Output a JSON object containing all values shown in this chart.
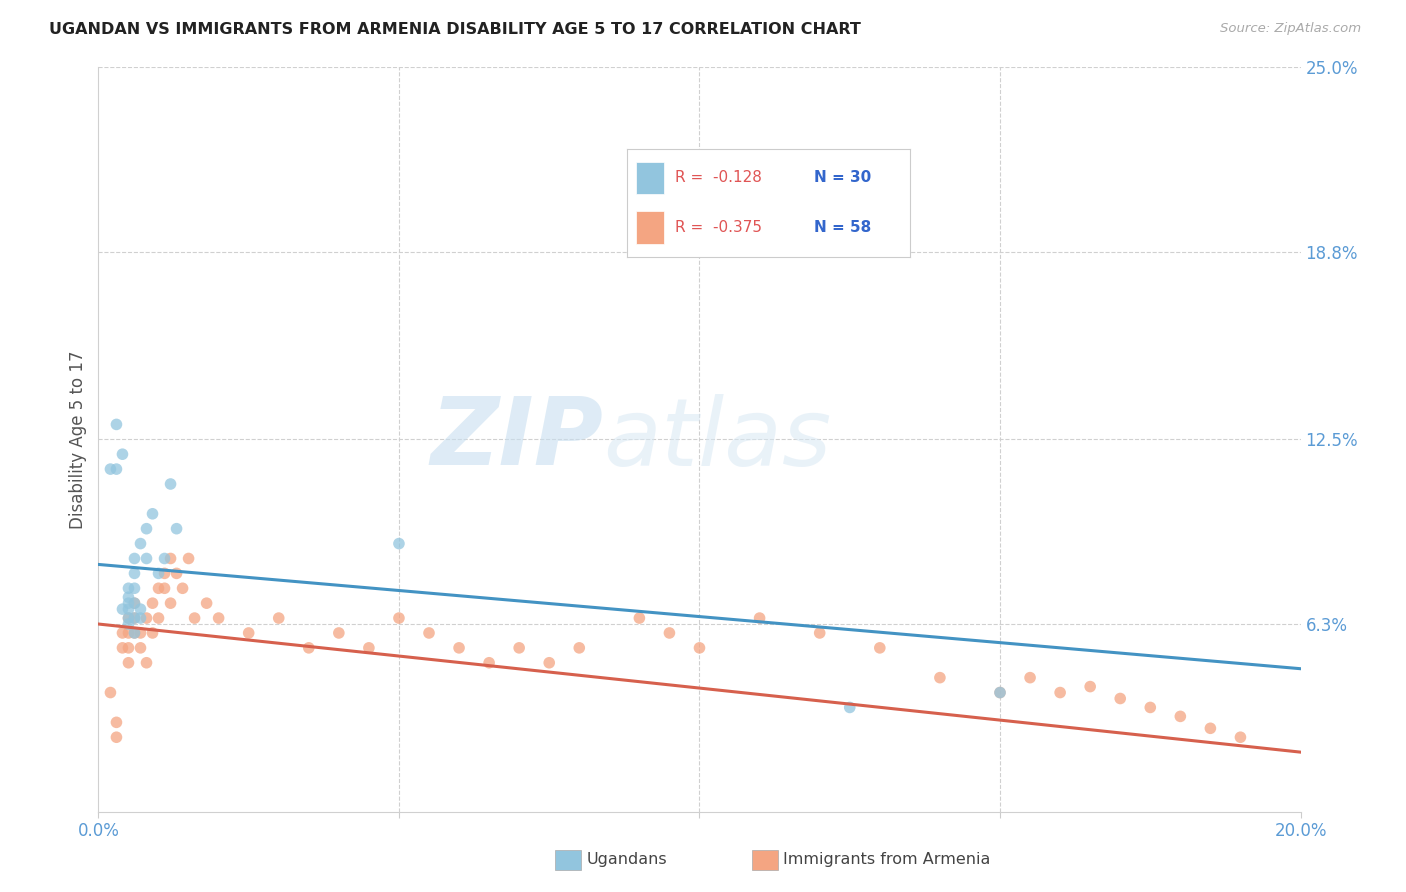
{
  "title": "UGANDAN VS IMMIGRANTS FROM ARMENIA DISABILITY AGE 5 TO 17 CORRELATION CHART",
  "source": "Source: ZipAtlas.com",
  "ylabel": "Disability Age 5 to 17",
  "xlim": [
    0.0,
    0.2
  ],
  "ylim": [
    0.0,
    0.25
  ],
  "ytick_right_labels": [
    "25.0%",
    "18.8%",
    "12.5%",
    "6.3%"
  ],
  "ytick_right_values": [
    0.25,
    0.188,
    0.125,
    0.063
  ],
  "legend_r1": "-0.128",
  "legend_n1": "30",
  "legend_r2": "-0.375",
  "legend_n2": "58",
  "color_blue": "#92c5de",
  "color_pink": "#f4a582",
  "line_blue": "#4393c3",
  "line_pink": "#d6604d",
  "watermark_zip": "ZIP",
  "watermark_atlas": "atlas",
  "ugandans_x": [
    0.002,
    0.003,
    0.003,
    0.004,
    0.004,
    0.005,
    0.005,
    0.005,
    0.005,
    0.005,
    0.005,
    0.006,
    0.006,
    0.006,
    0.006,
    0.006,
    0.006,
    0.007,
    0.007,
    0.007,
    0.008,
    0.008,
    0.009,
    0.01,
    0.011,
    0.012,
    0.013,
    0.05,
    0.15,
    0.125
  ],
  "ugandans_y": [
    0.115,
    0.13,
    0.115,
    0.068,
    0.12,
    0.063,
    0.065,
    0.068,
    0.07,
    0.072,
    0.075,
    0.06,
    0.065,
    0.07,
    0.075,
    0.08,
    0.085,
    0.065,
    0.068,
    0.09,
    0.095,
    0.085,
    0.1,
    0.08,
    0.085,
    0.11,
    0.095,
    0.09,
    0.04,
    0.035
  ],
  "armenia_x": [
    0.002,
    0.003,
    0.003,
    0.004,
    0.004,
    0.005,
    0.005,
    0.005,
    0.005,
    0.006,
    0.006,
    0.006,
    0.007,
    0.007,
    0.008,
    0.008,
    0.009,
    0.009,
    0.01,
    0.01,
    0.011,
    0.011,
    0.012,
    0.012,
    0.013,
    0.014,
    0.015,
    0.016,
    0.018,
    0.02,
    0.025,
    0.03,
    0.035,
    0.04,
    0.045,
    0.05,
    0.055,
    0.06,
    0.065,
    0.07,
    0.075,
    0.08,
    0.09,
    0.095,
    0.1,
    0.11,
    0.12,
    0.13,
    0.14,
    0.15,
    0.155,
    0.16,
    0.165,
    0.17,
    0.175,
    0.18,
    0.185,
    0.19
  ],
  "armenia_y": [
    0.04,
    0.025,
    0.03,
    0.055,
    0.06,
    0.05,
    0.055,
    0.06,
    0.065,
    0.06,
    0.065,
    0.07,
    0.055,
    0.06,
    0.05,
    0.065,
    0.06,
    0.07,
    0.065,
    0.075,
    0.075,
    0.08,
    0.085,
    0.07,
    0.08,
    0.075,
    0.085,
    0.065,
    0.07,
    0.065,
    0.06,
    0.065,
    0.055,
    0.06,
    0.055,
    0.065,
    0.06,
    0.055,
    0.05,
    0.055,
    0.05,
    0.055,
    0.065,
    0.06,
    0.055,
    0.065,
    0.06,
    0.055,
    0.045,
    0.04,
    0.045,
    0.04,
    0.042,
    0.038,
    0.035,
    0.032,
    0.028,
    0.025
  ],
  "blue_line_x": [
    0.0,
    0.2
  ],
  "blue_line_y": [
    0.083,
    0.048
  ],
  "pink_line_x": [
    0.0,
    0.2
  ],
  "pink_line_y": [
    0.063,
    0.02
  ]
}
